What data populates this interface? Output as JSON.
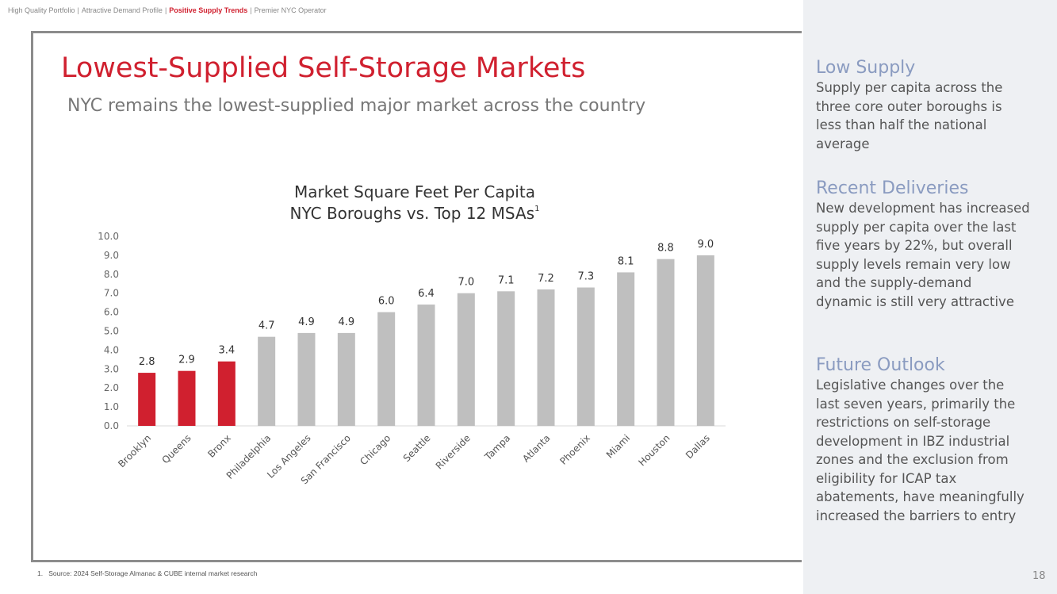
{
  "header": {
    "items": [
      "High Quality Portfolio",
      "Attractive Demand Profile",
      "Positive Supply Trends",
      "Premier NYC Operator"
    ],
    "separator": "|",
    "active": 2
  },
  "slide": {
    "title": "Lowest-Supplied Self-Storage Markets",
    "subtitle": "NYC remains the lowest-supplied major market across the country"
  },
  "chart_data": {
    "type": "bar",
    "title": "Market Square Feet Per Capita",
    "subtitle": "NYC Boroughs vs. Top 12 MSAs",
    "subtitle_note": "1",
    "categories": [
      "Brooklyn",
      "Queens",
      "Bronx",
      "Philadelphia",
      "Los Angeles",
      "San Francisco",
      "Chicago",
      "Seattle",
      "Riverside",
      "Tampa",
      "Atlanta",
      "Phoenix",
      "Miami",
      "Houston",
      "Dallas"
    ],
    "values": [
      2.8,
      2.9,
      3.4,
      4.7,
      4.9,
      4.9,
      6.0,
      6.4,
      7.0,
      7.1,
      7.2,
      7.3,
      8.1,
      8.8,
      9.0
    ],
    "value_labels": [
      "2.8",
      "2.9",
      "3.4",
      "4.7",
      "4.9",
      "4.9",
      "6.0",
      "6.4",
      "7.0",
      "7.1",
      "7.2",
      "7.3",
      "8.1",
      "8.8",
      "9.0"
    ],
    "colors": [
      "#d0202f",
      "#d0202f",
      "#d0202f",
      "#bfbfbf",
      "#bfbfbf",
      "#bfbfbf",
      "#bfbfbf",
      "#bfbfbf",
      "#bfbfbf",
      "#bfbfbf",
      "#bfbfbf",
      "#bfbfbf",
      "#bfbfbf",
      "#bfbfbf",
      "#bfbfbf"
    ],
    "ylim": [
      0,
      10
    ],
    "yticks": [
      {
        "value": 0,
        "label": "0.0"
      },
      {
        "value": 1,
        "label": "1.0"
      },
      {
        "value": 2,
        "label": "2.0"
      },
      {
        "value": 3,
        "label": "3.0"
      },
      {
        "value": 4,
        "label": "4.0"
      },
      {
        "value": 5,
        "label": "5.0"
      },
      {
        "value": 6,
        "label": "6.0"
      },
      {
        "value": 7,
        "label": "7.0"
      },
      {
        "value": 8,
        "label": "8.0"
      },
      {
        "value": 9,
        "label": "9.0"
      },
      {
        "value": 10,
        "label": "10.0"
      }
    ],
    "grid": false
  },
  "sidebar": {
    "sections": [
      {
        "heading": "Low Supply",
        "body": "Supply per capita across the three core outer boroughs is less than half the national average"
      },
      {
        "heading": "Recent Deliveries",
        "body": "New development has increased supply per capita over the last five years by 22%, but overall supply levels remain very low and the supply-demand dynamic is still very attractive"
      },
      {
        "heading": "Future Outlook",
        "body": "Legislative changes over the last seven years, primarily the restrictions on self-storage development in IBZ industrial zones and the exclusion from eligibility for ICAP tax abatements, have meaningfully increased the barriers to entry"
      }
    ]
  },
  "footnote": {
    "number": "1.",
    "text": "Source: 2024 Self-Storage Almanac & CUBE internal market research"
  },
  "page_number": "18"
}
